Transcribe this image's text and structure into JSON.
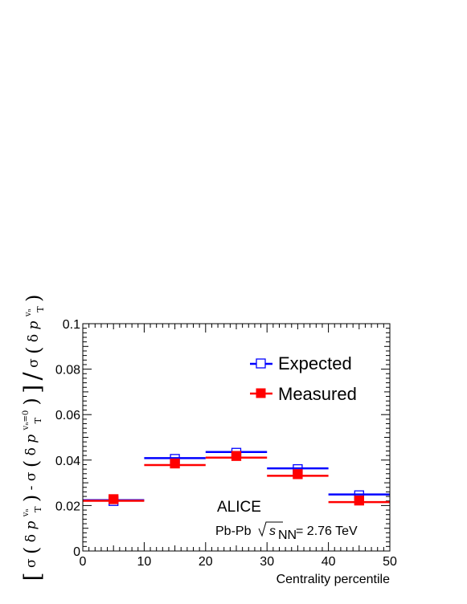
{
  "chart_data": {
    "type": "scatter",
    "xlabel": "Centrality percentile",
    "ylabel": {
      "sigma": "σ",
      "delta": "δ",
      "p": "p",
      "T": "T",
      "vn": "vₙ",
      "vn0": "vₙ=0",
      "minus": "-",
      "slash": "/"
    },
    "xlim": [
      0,
      50
    ],
    "ylim": [
      0,
      0.1
    ],
    "xticks": [
      0,
      10,
      20,
      30,
      40,
      50
    ],
    "xtick_labels": [
      "0",
      "10",
      "20",
      "30",
      "40",
      "50"
    ],
    "yticks": [
      0,
      0.02,
      0.04,
      0.06,
      0.08,
      0.1
    ],
    "ytick_labels": [
      "0",
      "0.02",
      "0.04",
      "0.06",
      "0.08",
      "0.1"
    ],
    "x_bins": [
      [
        0,
        10
      ],
      [
        10,
        20
      ],
      [
        20,
        30
      ],
      [
        30,
        40
      ],
      [
        40,
        50
      ]
    ],
    "x": [
      5,
      15,
      25,
      35,
      45
    ],
    "series": [
      {
        "name": "Expected",
        "color": "#0000ff",
        "marker": "open-square",
        "values": [
          0.022,
          0.0405,
          0.0432,
          0.036,
          0.0245
        ]
      },
      {
        "name": "Measured",
        "color": "#ff0000",
        "marker": "filled-square",
        "values": [
          0.0228,
          0.0385,
          0.0418,
          0.0338,
          0.0222
        ]
      }
    ],
    "legend_position": "top-right",
    "annotations": {
      "experiment": "ALICE",
      "system": "Pb-Pb",
      "sqrt_s_sub": "NN",
      "energy": "= 2.76 TeV"
    }
  }
}
